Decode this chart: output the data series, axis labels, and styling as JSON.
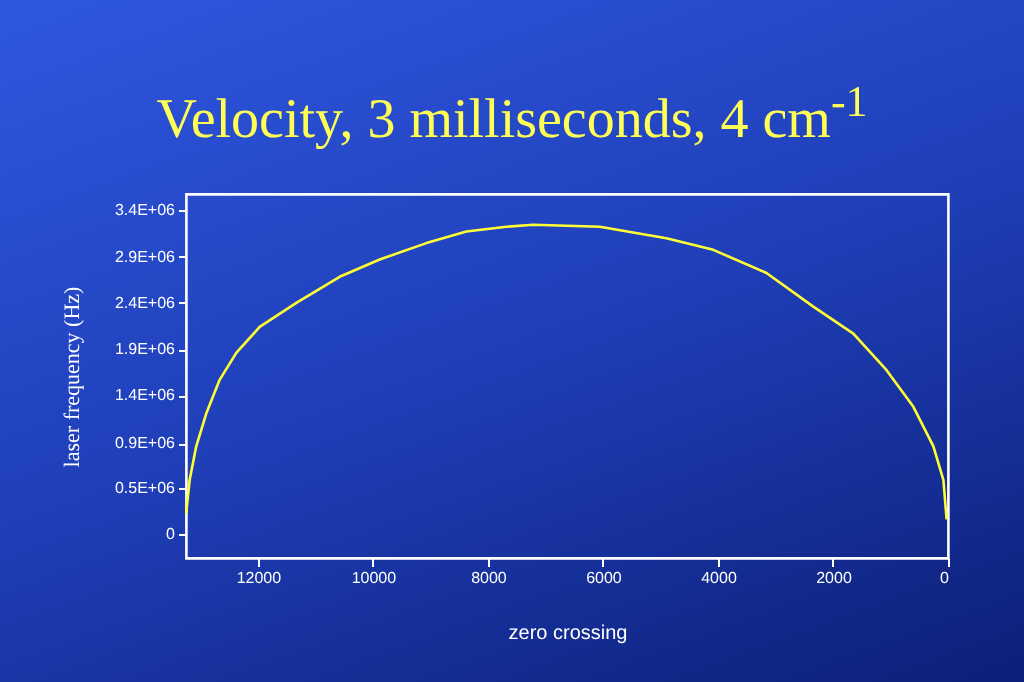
{
  "chart_data": {
    "type": "line",
    "title": "Velocity, 3 milliseconds, 4 cm$^{-1}$",
    "xlabel": "zero crossing",
    "ylabel": "laser frequency (Hz)",
    "x": [
      13247,
      13187,
      13072,
      12898,
      12665,
      12376,
      11969,
      11332,
      10578,
      9882,
      9070,
      8375,
      7679,
      7213,
      6054,
      4896,
      4082,
      3156,
      2342,
      1646,
      1068,
      602,
      254,
      80,
      24
    ],
    "series": [
      {
        "color": "#ffff33",
        "values": [
          210000,
          560000,
          910000,
          1250000,
          1600000,
          1880000,
          2150000,
          2400000,
          2670000,
          2850000,
          3020000,
          3140000,
          3190000,
          3210000,
          3190000,
          3070000,
          2950000,
          2710000,
          2360000,
          2080000,
          1700000,
          1320000,
          910000,
          560000,
          150000
        ]
      }
    ],
    "xlim": [
      13250,
      0
    ],
    "xticks": [
      12000,
      10000,
      8000,
      6000,
      4000,
      2000,
      0
    ],
    "ylim": [
      -250000,
      3530000
    ],
    "yticks": [
      0,
      {
        "value": 480000,
        "label": "0.5E+06"
      },
      {
        "value": 940000,
        "label": "0.9E+06"
      },
      {
        "value": 1440000,
        "label": "1.4E+06"
      },
      {
        "value": 1920000,
        "label": "1.9E+06"
      },
      {
        "value": 2400000,
        "label": "2.4E+06"
      },
      {
        "value": 2880000,
        "label": "2.9E+06"
      },
      {
        "value": 3360000,
        "label": "3.4E+06"
      }
    ],
    "grid": false,
    "legend": false,
    "marker": "none",
    "line_style": "solid"
  }
}
